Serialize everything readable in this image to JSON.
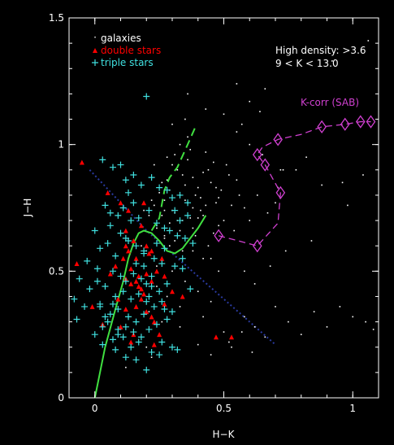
{
  "chart_data": {
    "type": "scatter",
    "xlabel": "H−K",
    "ylabel": "J−H",
    "xlim": [
      -0.1,
      1.1
    ],
    "ylim": [
      0,
      1.5
    ],
    "x_ticks": [
      0,
      0.5,
      1
    ],
    "x_tick_labels": [
      "0",
      "0.5",
      "1"
    ],
    "y_ticks": [
      0,
      0.5,
      1,
      1.5
    ],
    "y_tick_labels": [
      "0",
      "0.5",
      "1",
      "1.5"
    ],
    "grid": false,
    "legend_position": "top-left",
    "legend": [
      {
        "label": "galaxies",
        "marker": "dot",
        "color": "#ffffff"
      },
      {
        "label": "double stars",
        "marker": "triangle",
        "color": "#ff0000"
      },
      {
        "label": "triple stars",
        "marker": "plus",
        "color": "#40e0e0"
      }
    ],
    "annotations": [
      {
        "text": "High density: >3.6",
        "color": "#ffffff",
        "x": 0.7,
        "y": 1.36
      },
      {
        "text": "9 < K < 13.0",
        "color": "#ffffff",
        "x": 0.7,
        "y": 1.3
      },
      {
        "text": "K-corr (SAB)",
        "color": "#d040d0",
        "x": 0.8,
        "y": 1.16
      }
    ],
    "series": [
      {
        "name": "K-corr (SAB)",
        "kind": "dashed_line_markers",
        "color": "#d040d0",
        "x": [
          0.48,
          0.63,
          0.71,
          0.72,
          0.66,
          0.63,
          0.65,
          0.71,
          0.8,
          0.88,
          0.97,
          1.03,
          1.07
        ],
        "y": [
          0.64,
          0.6,
          0.69,
          0.81,
          0.92,
          0.96,
          0.99,
          1.02,
          1.04,
          1.07,
          1.08,
          1.09,
          1.09
        ],
        "marker_idx": [
          0,
          1,
          3,
          4,
          5,
          7,
          9,
          10,
          11,
          12
        ]
      },
      {
        "kind": "solid_line",
        "color": "#40e040",
        "x": [
          0,
          0.04,
          0.08,
          0.11,
          0.13,
          0.15,
          0.17,
          0.19,
          0.22,
          0.25,
          0.28,
          0.31,
          0.34,
          0.37,
          0.4,
          0.43
        ],
        "y": [
          0,
          0.2,
          0.35,
          0.46,
          0.55,
          0.61,
          0.65,
          0.66,
          0.65,
          0.62,
          0.58,
          0.57,
          0.59,
          0.63,
          0.67,
          0.72
        ]
      },
      {
        "kind": "dashed_line",
        "color": "#40e040",
        "x": [
          0.22,
          0.25,
          0.27,
          0.29,
          0.32,
          0.36,
          0.39
        ],
        "y": [
          0.66,
          0.71,
          0.82,
          0.87,
          0.91,
          1.0,
          1.07
        ]
      },
      {
        "kind": "dotted_line",
        "color": "#2a3aa0",
        "x": [
          -0.02,
          0.1,
          0.2,
          0.3,
          0.4,
          0.5,
          0.6,
          0.7
        ],
        "y": [
          0.9,
          0.77,
          0.66,
          0.57,
          0.48,
          0.39,
          0.3,
          0.21
        ]
      },
      {
        "name": "double stars",
        "kind": "triangle",
        "color": "#ff0000",
        "x": [
          -0.05,
          0.05,
          0.1,
          0.12,
          0.13,
          0.15,
          0.16,
          0.14,
          0.08,
          0.12,
          0.17,
          0.2,
          0.22,
          0.24,
          0.19,
          0.16,
          0.1,
          0.11,
          0.14,
          0.18,
          0.2,
          0.23,
          0.27,
          0.15,
          0.13,
          0.18,
          0.2,
          0.09,
          0.12,
          0.16,
          0.22,
          0.26,
          0.3,
          0.34,
          0.22,
          0.25,
          0.17,
          -0.07,
          0.06,
          0.19,
          0.21,
          0.12,
          0.18,
          -0.01,
          0.03,
          0.27,
          0.53,
          0.47,
          0.14,
          0.23
        ],
        "y": [
          0.93,
          0.81,
          0.77,
          0.66,
          0.58,
          0.62,
          0.55,
          0.51,
          0.52,
          0.47,
          0.48,
          0.49,
          0.46,
          0.5,
          0.41,
          0.36,
          0.28,
          0.55,
          0.45,
          0.39,
          0.34,
          0.3,
          0.37,
          0.25,
          0.74,
          0.68,
          0.6,
          0.39,
          0.35,
          0.46,
          0.58,
          0.55,
          0.42,
          0.4,
          0.32,
          0.25,
          0.44,
          0.53,
          0.49,
          0.77,
          0.57,
          0.6,
          0.43,
          0.36,
          0.29,
          0.48,
          0.24,
          0.24,
          0.22,
          0.21
        ]
      },
      {
        "name": "triple stars",
        "kind": "plus",
        "color": "#40e0e0",
        "x": [
          0.2,
          0.03,
          0.07,
          0.1,
          0.12,
          0.15,
          0.18,
          0.22,
          0.25,
          0.28,
          0.3,
          0.33,
          0.36,
          0.04,
          0.06,
          0.09,
          0.11,
          0.14,
          0.17,
          0.21,
          0.24,
          0.27,
          0.29,
          0.32,
          0.35,
          0.38,
          0.0,
          0.02,
          0.05,
          0.08,
          0.13,
          0.16,
          0.19,
          0.23,
          0.26,
          0.31,
          0.34,
          -0.03,
          0.01,
          0.07,
          0.1,
          0.12,
          0.15,
          0.18,
          0.2,
          0.22,
          0.25,
          -0.06,
          -0.02,
          0.04,
          0.08,
          0.11,
          0.14,
          0.17,
          0.2,
          0.23,
          0.27,
          0.3,
          -0.08,
          -0.04,
          0.02,
          0.06,
          0.09,
          0.13,
          0.16,
          0.19,
          0.24,
          0.28,
          0.05,
          0.09,
          0.12,
          0.15,
          0.18,
          0.21,
          0.26,
          0.3,
          -0.07,
          0.0,
          0.03,
          0.07,
          0.11,
          0.14,
          0.17,
          0.22,
          0.25,
          0.32,
          0.03,
          0.08,
          0.12,
          0.16,
          0.2,
          0.13,
          0.1,
          0.15,
          0.06,
          0.24,
          0.31,
          0.19,
          0.22,
          0.28,
          0.34,
          0.02,
          0.27,
          0.37,
          0.33,
          0.36,
          0.01,
          0.21,
          0.26,
          0.09,
          0.04,
          0.19,
          0.12,
          0.16,
          0.07
        ],
        "y": [
          1.19,
          0.94,
          0.91,
          0.92,
          0.86,
          0.88,
          0.84,
          0.87,
          0.83,
          0.82,
          0.79,
          0.8,
          0.77,
          0.76,
          0.73,
          0.72,
          0.75,
          0.7,
          0.71,
          0.74,
          0.69,
          0.67,
          0.66,
          0.64,
          0.63,
          0.61,
          0.66,
          0.59,
          0.61,
          0.56,
          0.62,
          0.6,
          0.57,
          0.55,
          0.53,
          0.52,
          0.51,
          0.54,
          0.51,
          0.5,
          0.48,
          0.46,
          0.49,
          0.47,
          0.45,
          0.44,
          0.42,
          0.47,
          0.43,
          0.44,
          0.4,
          0.42,
          0.39,
          0.41,
          0.38,
          0.36,
          0.35,
          0.34,
          0.39,
          0.36,
          0.37,
          0.33,
          0.35,
          0.32,
          0.3,
          0.33,
          0.29,
          0.31,
          0.3,
          0.27,
          0.28,
          0.26,
          0.24,
          0.27,
          0.22,
          0.2,
          0.31,
          0.25,
          0.28,
          0.23,
          0.24,
          0.2,
          0.22,
          0.18,
          0.17,
          0.19,
          0.21,
          0.19,
          0.16,
          0.15,
          0.11,
          0.81,
          0.65,
          0.77,
          0.68,
          0.61,
          0.74,
          0.52,
          0.48,
          0.45,
          0.55,
          0.36,
          0.59,
          0.43,
          0.7,
          0.72,
          0.46,
          0.4,
          0.38,
          0.25,
          0.32,
          0.58,
          0.63,
          0.53,
          0.37
        ]
      },
      {
        "name": "galaxies",
        "kind": "dot",
        "color": "#ffffff",
        "x": [
          0.23,
          0.27,
          0.3,
          0.33,
          0.36,
          0.26,
          0.29,
          0.32,
          0.35,
          0.38,
          0.41,
          0.24,
          0.28,
          0.31,
          0.34,
          0.37,
          0.4,
          0.43,
          0.25,
          0.29,
          0.32,
          0.35,
          0.38,
          0.42,
          0.45,
          0.27,
          0.3,
          0.33,
          0.36,
          0.39,
          0.44,
          0.47,
          0.31,
          0.34,
          0.37,
          0.41,
          0.46,
          0.49,
          0.52,
          0.33,
          0.38,
          0.43,
          0.48,
          0.51,
          0.55,
          0.36,
          0.42,
          0.47,
          0.53,
          0.4,
          0.46,
          0.5,
          0.56,
          0.21,
          0.24,
          0.27,
          0.22,
          0.26,
          0.29,
          0.19,
          0.23,
          0.28,
          0.31,
          0.34,
          0.39,
          0.44,
          0.48,
          0.54,
          0.58,
          0.6,
          0.63,
          0.67,
          0.7,
          0.55,
          0.6,
          0.65,
          0.72,
          0.5,
          0.57,
          0.64,
          0.45,
          0.58,
          0.62,
          0.68,
          0.74,
          0.3,
          0.35,
          0.24,
          0.28,
          0.33,
          0.4,
          0.45,
          0.21,
          0.26,
          0.33,
          0.42,
          0.5,
          0.52,
          0.58,
          0.62,
          0.66,
          0.7,
          0.75,
          0.8,
          0.85,
          0.9,
          0.95,
          1.0,
          1.05,
          1.08,
          0.78,
          0.88,
          0.98,
          1.06,
          0.92,
          0.84,
          0.2,
          0.22,
          0.47,
          0.53,
          0.57,
          0.61,
          0.4,
          0.45,
          0.16,
          0.12,
          0.36,
          0.43,
          0.66,
          0.55,
          0.73,
          0.82,
          0.96,
          1.04,
          0.6,
          0.71,
          0.3,
          0.35,
          0.27,
          0.38,
          0.42,
          0.48,
          0.24,
          0.2,
          0.18
        ],
        "y": [
          0.76,
          0.78,
          0.74,
          0.8,
          0.77,
          0.72,
          0.82,
          0.7,
          0.84,
          0.75,
          0.79,
          0.68,
          0.86,
          0.73,
          0.88,
          0.71,
          0.83,
          0.76,
          0.81,
          0.69,
          0.9,
          0.78,
          0.87,
          0.72,
          0.85,
          0.74,
          0.92,
          0.66,
          0.94,
          0.8,
          0.9,
          0.77,
          0.96,
          0.7,
          0.98,
          0.74,
          0.93,
          0.82,
          0.88,
          1.0,
          0.67,
          0.97,
          0.79,
          0.92,
          0.86,
          1.03,
          0.89,
          0.83,
          0.76,
          0.71,
          0.65,
          0.7,
          0.8,
          0.72,
          0.67,
          0.63,
          0.78,
          0.85,
          0.6,
          0.74,
          0.92,
          0.95,
          0.62,
          0.58,
          0.64,
          0.6,
          0.68,
          0.66,
          0.75,
          0.7,
          0.8,
          0.73,
          0.77,
          1.05,
          1.0,
          0.96,
          0.9,
          1.12,
          1.08,
          1.13,
          0.55,
          0.5,
          0.45,
          0.52,
          0.58,
          0.5,
          0.46,
          0.44,
          0.4,
          0.36,
          0.42,
          0.38,
          0.34,
          0.3,
          0.28,
          0.32,
          0.26,
          0.22,
          0.32,
          0.28,
          0.24,
          0.36,
          0.3,
          0.25,
          0.34,
          0.28,
          0.36,
          0.32,
          0.3,
          0.27,
          0.9,
          0.84,
          0.76,
          1.41,
          1.33,
          0.62,
          0.2,
          0.16,
          0.24,
          0.2,
          0.26,
          0.18,
          0.21,
          0.17,
          0.15,
          0.12,
          1.2,
          1.14,
          1.22,
          1.24,
          0.9,
          0.95,
          0.85,
          0.88,
          1.17,
          0.83,
          1.08,
          1.1,
          0.64,
          0.58,
          0.55,
          0.5,
          0.52,
          0.58,
          0.6
        ]
      }
    ]
  }
}
